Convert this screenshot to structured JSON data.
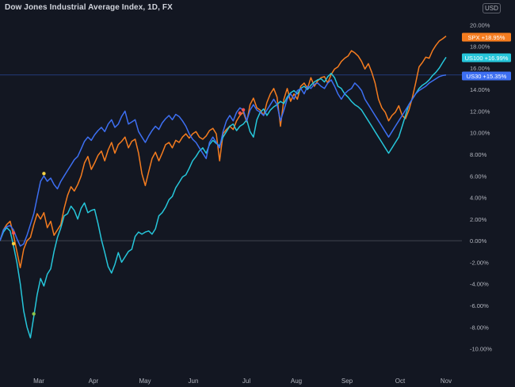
{
  "header": {
    "title": "Dow Jones Industrial Average Index, 1D, FX",
    "currency": "USD"
  },
  "chart_data": {
    "type": "line",
    "x_ticks": [
      "Mar",
      "Apr",
      "May",
      "Jun",
      "Jul",
      "Aug",
      "Sep",
      "Oct",
      "Nov"
    ],
    "y_ticks": [
      "20.00%",
      "18.00%",
      "16.00%",
      "14.00%",
      "12.00%",
      "10.00%",
      "8.00%",
      "6.00%",
      "4.00%",
      "2.00%",
      "0.00%",
      "-2.00%",
      "-4.00%",
      "-6.00%",
      "-8.00%",
      "-10.00%"
    ],
    "y_unit": "%",
    "ylim": [
      -11.5,
      22
    ],
    "grid": false,
    "series": [
      {
        "name": "SPX",
        "label": "+18.95%",
        "color": "#f57c1f",
        "values": [
          0,
          1.0,
          1.5,
          1.8,
          0.5,
          -1.0,
          -2.5,
          -0.8,
          0,
          0.3,
          1.5,
          2.5,
          2.0,
          2.6,
          1.2,
          1.8,
          0.5,
          1.0,
          1.5,
          3.0,
          4.2,
          5.0,
          4.6,
          5.2,
          6.0,
          7.2,
          7.8,
          6.6,
          7.2,
          7.9,
          8.3,
          7.4,
          8.4,
          9.1,
          8.1,
          8.9,
          9.2,
          9.6,
          8.6,
          9.2,
          9.4,
          8.1,
          6.2,
          5.1,
          6.4,
          7.6,
          8.2,
          7.4,
          8.1,
          8.9,
          9.1,
          8.6,
          9.3,
          9.1,
          9.6,
          9.9,
          9.5,
          9.9,
          10.1,
          9.6,
          9.4,
          9.7,
          10.2,
          10.4,
          9.9,
          7.4,
          9.9,
          10.3,
          10.6,
          10.3,
          11.1,
          11.6,
          11.9,
          11.0,
          12.6,
          13.2,
          12.3,
          12.1,
          11.6,
          12.8,
          13.6,
          14.1,
          13.3,
          10.6,
          13.1,
          14.1,
          12.9,
          13.6,
          13.1,
          14.3,
          14.6,
          14.1,
          15.1,
          14.3,
          14.8,
          15.1,
          15.2,
          14.6,
          15.4,
          15.9,
          16.1,
          16.6,
          16.9,
          17.1,
          17.6,
          17.4,
          17.1,
          16.6,
          15.9,
          16.4,
          15.6,
          14.6,
          13.1,
          12.3,
          11.9,
          11.1,
          11.6,
          11.9,
          12.5,
          11.6,
          11.3,
          12.1,
          13.2,
          14.6,
          16.1,
          16.5,
          17.0,
          16.9,
          17.6,
          18.1,
          18.5,
          18.7,
          18.95
        ]
      },
      {
        "name": "US100",
        "label": "+16.99%",
        "color": "#26c6da",
        "values": [
          0,
          0.8,
          1.2,
          0.9,
          -0.5,
          -2.0,
          -4.0,
          -6.5,
          -8.0,
          -9.0,
          -7.0,
          -5.0,
          -3.5,
          -4.2,
          -3.1,
          -2.6,
          -1.0,
          0.3,
          1.2,
          2.3,
          2.5,
          3.2,
          2.8,
          2.0,
          3.0,
          3.5,
          2.6,
          2.8,
          2.9,
          1.6,
          0.1,
          -1.1,
          -2.4,
          -3.0,
          -2.2,
          -1.1,
          -2.0,
          -1.5,
          -1.0,
          -0.8,
          0.4,
          0.8,
          0.6,
          0.8,
          0.9,
          0.6,
          1.1,
          2.3,
          2.6,
          3.1,
          3.8,
          4.1,
          4.9,
          5.4,
          5.9,
          6.1,
          6.7,
          7.4,
          7.8,
          8.3,
          8.6,
          8.1,
          8.9,
          9.3,
          9.0,
          8.8,
          9.6,
          10.1,
          10.6,
          10.8,
          10.2,
          10.6,
          10.8,
          11.2,
          10.1,
          9.6,
          11.2,
          11.9,
          12.2,
          11.6,
          12.1,
          12.4,
          12.6,
          12.9,
          12.7,
          13.3,
          13.7,
          13.9,
          13.6,
          14.1,
          14.3,
          14.0,
          14.4,
          14.7,
          14.9,
          15.0,
          14.7,
          15.2,
          15.5,
          15.1,
          14.3,
          14.1,
          13.6,
          13.3,
          12.9,
          12.6,
          12.4,
          12.1,
          11.6,
          11.1,
          10.6,
          10.1,
          9.6,
          9.1,
          8.6,
          8.1,
          8.6,
          9.1,
          9.6,
          10.6,
          11.6,
          12.6,
          13.1,
          13.6,
          14.1,
          14.4,
          14.6,
          14.9,
          15.3,
          15.6,
          16.0,
          16.5,
          16.99
        ]
      },
      {
        "name": "US30",
        "label": "+15.35%",
        "color": "#3d6ff2",
        "values": [
          0,
          1.0,
          1.3,
          1.4,
          1.0,
          0.2,
          -0.5,
          -0.3,
          0.5,
          1.5,
          2.5,
          4.0,
          5.5,
          6.0,
          5.5,
          5.8,
          5.2,
          4.8,
          5.5,
          6.0,
          6.5,
          7.0,
          7.5,
          7.8,
          8.5,
          9.2,
          9.6,
          9.3,
          9.8,
          10.2,
          10.5,
          10.1,
          10.8,
          11.2,
          10.5,
          10.8,
          11.5,
          12.0,
          10.8,
          11.0,
          11.2,
          10.1,
          9.6,
          9.1,
          9.7,
          10.2,
          10.6,
          10.3,
          10.9,
          11.3,
          11.6,
          11.2,
          11.7,
          11.5,
          11.1,
          10.6,
          9.9,
          9.4,
          9.1,
          8.6,
          8.1,
          7.6,
          9.1,
          9.6,
          9.1,
          8.6,
          10.1,
          11.1,
          11.6,
          11.1,
          11.9,
          12.3,
          12.1,
          11.1,
          12.1,
          12.6,
          12.1,
          11.9,
          11.6,
          12.1,
          12.6,
          13.1,
          12.6,
          11.1,
          12.1,
          13.1,
          13.6,
          13.1,
          13.9,
          14.1,
          13.6,
          14.3,
          14.1,
          14.5,
          14.6,
          14.3,
          14.1,
          14.6,
          14.9,
          14.3,
          13.6,
          13.1,
          13.6,
          13.9,
          14.1,
          14.6,
          14.3,
          13.9,
          13.1,
          12.6,
          12.1,
          11.6,
          11.1,
          10.6,
          10.1,
          9.6,
          10.1,
          10.6,
          11.1,
          11.6,
          12.1,
          12.6,
          13.1,
          13.6,
          13.9,
          14.1,
          14.3,
          14.6,
          14.8,
          15.0,
          15.2,
          15.3,
          15.35
        ]
      }
    ],
    "badges": [
      {
        "text": "SPX  +18.95%",
        "value": 18.95,
        "color": "#f57c1f"
      },
      {
        "text": "US100  +16.99%",
        "value": 16.99,
        "color": "#26c6da"
      },
      {
        "text": "US30  +15.35%",
        "value": 15.35,
        "color": "#3d6ff2"
      }
    ],
    "markers": [
      {
        "series_index": 1,
        "point_index": 4,
        "color": "#f5d142"
      },
      {
        "series_index": 1,
        "point_index": 10,
        "color": "#8bc34a"
      },
      {
        "series_index": 0,
        "point_index": 4,
        "color": "#ef5350"
      },
      {
        "series_index": 2,
        "point_index": 13,
        "color": "#f5d142"
      },
      {
        "series_index": 0,
        "point_index": 71,
        "color": "#ef5350"
      },
      {
        "series_index": 0,
        "point_index": 72,
        "color": "#ef5350"
      }
    ],
    "reference_lines": [
      {
        "value": 0,
        "color": "#787b86"
      },
      {
        "value": 15.35,
        "color": "#3d6ff2"
      }
    ]
  }
}
